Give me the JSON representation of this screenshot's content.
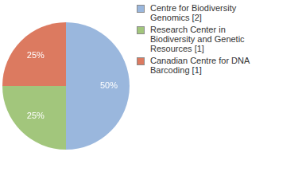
{
  "chart_data": {
    "type": "pie",
    "categories": [
      "Centre for Biodiversity Genomics [2]",
      "Research Center in Biodiversity and Genetic Resources [1]",
      "Canadian Centre for DNA Barcoding [1]"
    ],
    "values": [
      50,
      25,
      25
    ],
    "value_labels": [
      "50%",
      "25%",
      "25%"
    ],
    "colors": [
      "#9ab7dd",
      "#a2c67c",
      "#dc7a60"
    ],
    "data_labels": true,
    "legend": "right"
  }
}
